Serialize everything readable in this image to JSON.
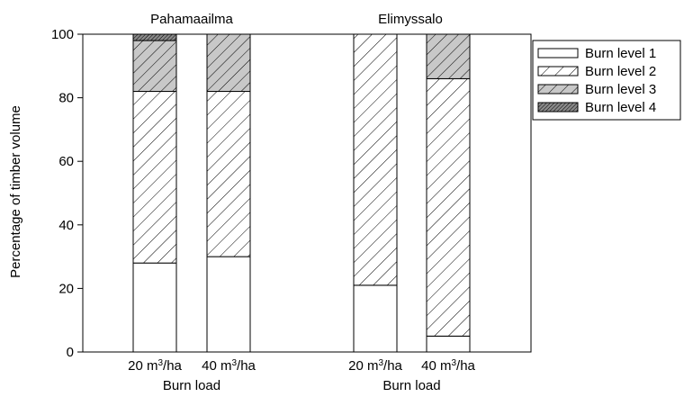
{
  "chart_data": {
    "type": "bar",
    "stacked": true,
    "ylabel": "Percentage of timber volume",
    "ylim": [
      0,
      100
    ],
    "yticks": [
      0,
      20,
      40,
      60,
      80,
      100
    ],
    "grid": false,
    "legend_position": "top-right",
    "panels": [
      {
        "title": "Pahamaailma",
        "xlabel": "Burn load",
        "categories": [
          "20 m³/ha",
          "40 m³/ha"
        ],
        "series": [
          {
            "name": "Burn level 1",
            "values": [
              28,
              30
            ]
          },
          {
            "name": "Burn level 2",
            "values": [
              54,
              52
            ]
          },
          {
            "name": "Burn level 3",
            "values": [
              16,
              18
            ]
          },
          {
            "name": "Burn level 4",
            "values": [
              2,
              0
            ]
          }
        ]
      },
      {
        "title": "Elimyssalo",
        "xlabel": "Burn load",
        "categories": [
          "20 m³/ha",
          "40 m³/ha"
        ],
        "series": [
          {
            "name": "Burn level 1",
            "values": [
              21,
              5
            ]
          },
          {
            "name": "Burn level 2",
            "values": [
              79,
              81
            ]
          },
          {
            "name": "Burn level 3",
            "values": [
              0,
              14
            ]
          },
          {
            "name": "Burn level 4",
            "values": [
              0,
              0
            ]
          }
        ]
      }
    ],
    "legend": [
      "Burn level 1",
      "Burn level 2",
      "Burn level 3",
      "Burn level 4"
    ],
    "series_styles": [
      {
        "fill": "#ffffff",
        "hatch": "none"
      },
      {
        "fill": "#ffffff",
        "hatch": "diag-sparse"
      },
      {
        "fill": "#c8c8c8",
        "hatch": "diag"
      },
      {
        "fill": "#8a8a8a",
        "hatch": "diag-dense"
      }
    ]
  }
}
